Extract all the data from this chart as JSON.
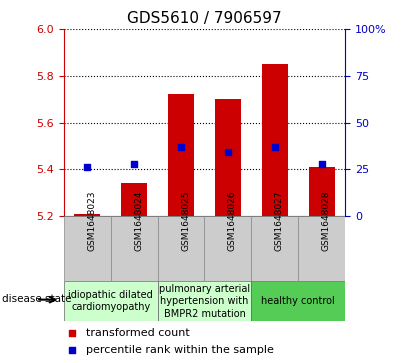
{
  "title": "GDS5610 / 7906597",
  "samples": [
    "GSM1648023",
    "GSM1648024",
    "GSM1648025",
    "GSM1648026",
    "GSM1648027",
    "GSM1648028"
  ],
  "bar_values": [
    5.21,
    5.34,
    5.72,
    5.7,
    5.85,
    5.41
  ],
  "percentile_values": [
    26,
    28,
    37,
    34,
    37,
    28
  ],
  "bar_bottom": 5.2,
  "ylim_left": [
    5.2,
    6.0
  ],
  "ylim_right": [
    0,
    100
  ],
  "yticks_left": [
    5.2,
    5.4,
    5.6,
    5.8,
    6.0
  ],
  "yticks_right": [
    0,
    25,
    50,
    75,
    100
  ],
  "bar_color": "#cc0000",
  "point_color": "#0000cc",
  "disease_groups": [
    {
      "label": "idiopathic dilated\ncardiomyopathy",
      "samples": [
        0,
        1
      ],
      "color": "#ccffcc"
    },
    {
      "label": "pulmonary arterial\nhypertension with\nBMPR2 mutation",
      "samples": [
        2,
        3
      ],
      "color": "#ccffcc"
    },
    {
      "label": "healthy control",
      "samples": [
        4,
        5
      ],
      "color": "#55cc55"
    }
  ],
  "disease_state_label": "disease state",
  "legend_items": [
    {
      "label": "transformed count",
      "color": "#cc0000"
    },
    {
      "label": "percentile rank within the sample",
      "color": "#0000cc"
    }
  ],
  "axis_color_left": "#cc0000",
  "axis_color_right": "#0000cc",
  "bar_width": 0.55,
  "title_fontsize": 11,
  "tick_fontsize": 8,
  "sample_fontsize": 6.5,
  "disease_fontsize": 7,
  "legend_fontsize": 8
}
